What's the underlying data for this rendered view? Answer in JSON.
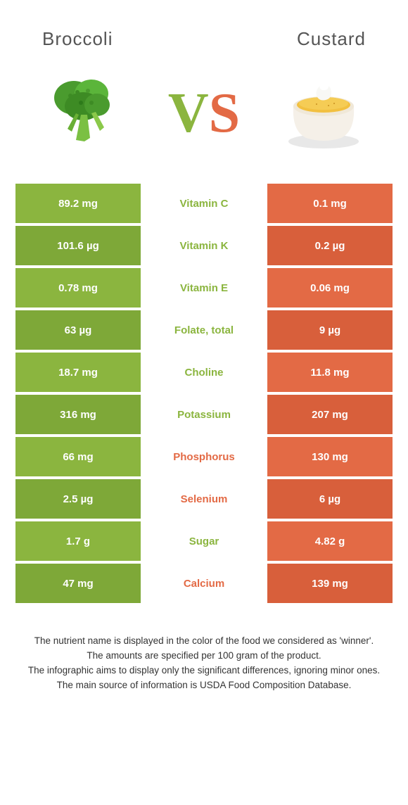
{
  "colors": {
    "left_bg": "#8bb53f",
    "left_bg_dark": "#7ea838",
    "right_bg": "#e36a45",
    "right_bg_dark": "#d85f3b",
    "left_label": "#8bb53f",
    "right_label": "#e36a45",
    "title_color": "#555555"
  },
  "header": {
    "left_title": "Broccoli",
    "right_title": "Custard"
  },
  "vs": {
    "v": "V",
    "s": "S"
  },
  "rows": [
    {
      "left": "89.2 mg",
      "mid": "Vitamin C",
      "right": "0.1 mg",
      "winner": "left",
      "alt": false
    },
    {
      "left": "101.6 µg",
      "mid": "Vitamin K",
      "right": "0.2 µg",
      "winner": "left",
      "alt": true
    },
    {
      "left": "0.78 mg",
      "mid": "Vitamin E",
      "right": "0.06 mg",
      "winner": "left",
      "alt": false
    },
    {
      "left": "63 µg",
      "mid": "Folate, total",
      "right": "9 µg",
      "winner": "left",
      "alt": true
    },
    {
      "left": "18.7 mg",
      "mid": "Choline",
      "right": "11.8 mg",
      "winner": "left",
      "alt": false
    },
    {
      "left": "316 mg",
      "mid": "Potassium",
      "right": "207 mg",
      "winner": "left",
      "alt": true
    },
    {
      "left": "66 mg",
      "mid": "Phosphorus",
      "right": "130 mg",
      "winner": "right",
      "alt": false
    },
    {
      "left": "2.5 µg",
      "mid": "Selenium",
      "right": "6 µg",
      "winner": "right",
      "alt": true
    },
    {
      "left": "1.7 g",
      "mid": "Sugar",
      "right": "4.82 g",
      "winner": "left",
      "alt": false
    },
    {
      "left": "47 mg",
      "mid": "Calcium",
      "right": "139 mg",
      "winner": "right",
      "alt": true
    }
  ],
  "footer": {
    "l1": "The nutrient name is displayed in the color of the food we considered as 'winner'.",
    "l2": "The amounts are specified per 100 gram of the product.",
    "l3": "The infographic aims to display only the significant differences, ignoring minor ones.",
    "l4": "The main source of information is USDA Food Composition Database."
  }
}
